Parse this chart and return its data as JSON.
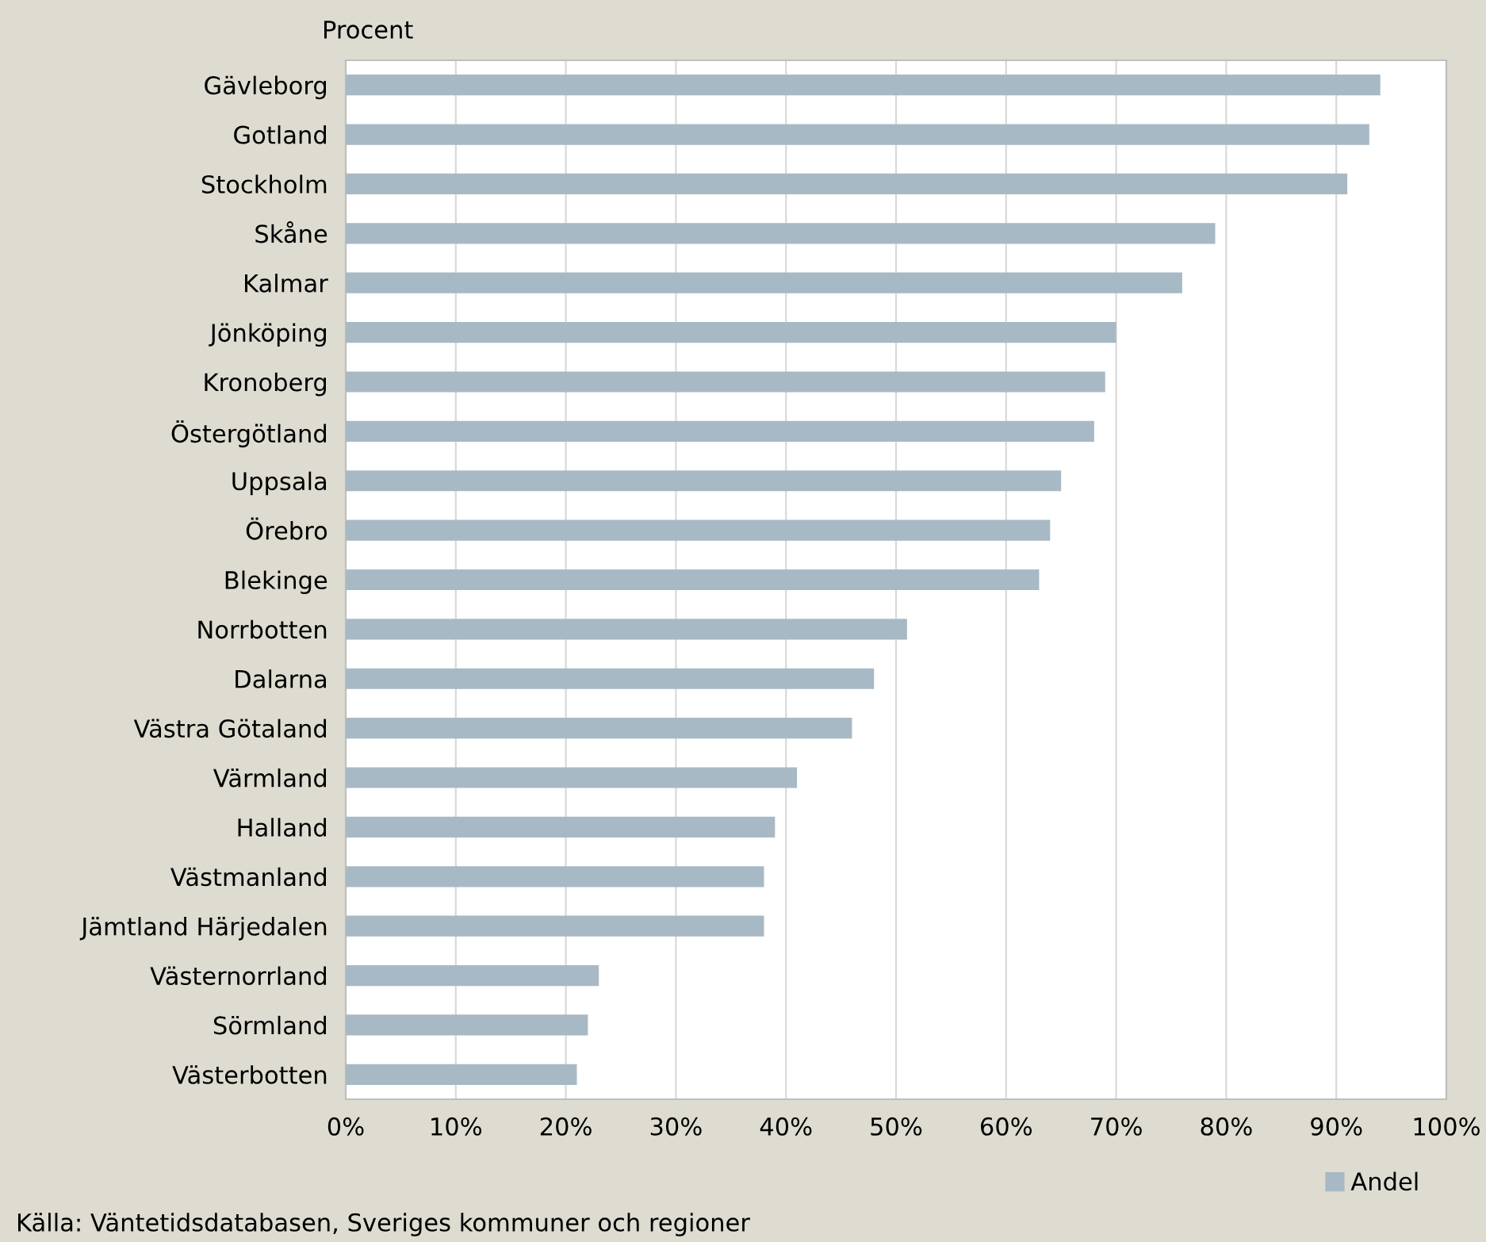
{
  "chart_data": {
    "type": "bar",
    "orientation": "horizontal",
    "xlabel": "Procent",
    "categories": [
      "Gävleborg",
      "Gotland",
      "Stockholm",
      "Skåne",
      "Kalmar",
      "Jönköping",
      "Kronoberg",
      "Östergötland",
      "Uppsala",
      "Örebro",
      "Blekinge",
      "Norrbotten",
      "Dalarna",
      "Västra Götaland",
      "Värmland",
      "Halland",
      "Västmanland",
      "Jämtland Härjedalen",
      "Västernorrland",
      "Sörmland",
      "Västerbotten"
    ],
    "series": [
      {
        "name": "Andel",
        "color": "#a7b9c4",
        "values": [
          94,
          93,
          91,
          79,
          76,
          70,
          69,
          68,
          65,
          64,
          63,
          51,
          48,
          46,
          41,
          39,
          38,
          38,
          23,
          22,
          21
        ]
      }
    ],
    "xlim": [
      0,
      100
    ],
    "xticks": [
      {
        "value": 0,
        "label": "0%"
      },
      {
        "value": 10,
        "label": "10%"
      },
      {
        "value": 20,
        "label": "20%"
      },
      {
        "value": 30,
        "label": "30%"
      },
      {
        "value": 40,
        "label": "40%"
      },
      {
        "value": 50,
        "label": "50%"
      },
      {
        "value": 60,
        "label": "60%"
      },
      {
        "value": 70,
        "label": "70%"
      },
      {
        "value": 80,
        "label": "80%"
      },
      {
        "value": 90,
        "label": "90%"
      },
      {
        "value": 100,
        "label": "100%"
      }
    ],
    "grid": "x",
    "legend": "bottom right",
    "annotations": [
      "Källa: Väntetidsdatabasen, Sveriges kommuner och regioner"
    ]
  }
}
